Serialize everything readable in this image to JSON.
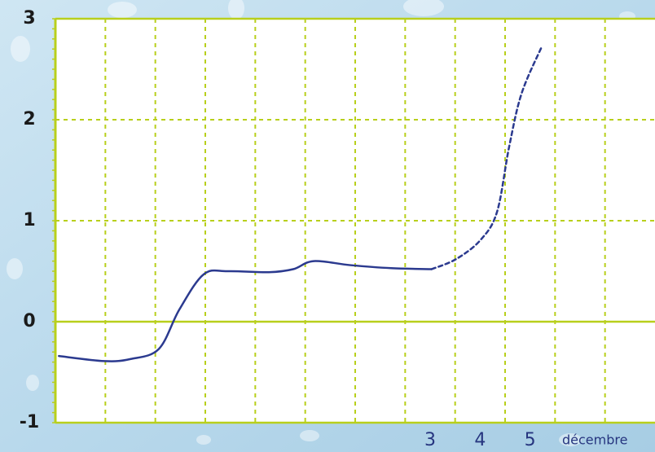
{
  "chart_data": {
    "type": "line",
    "xlabel": "décembre",
    "xlim": [
      0,
      12
    ],
    "xticks": [
      {
        "value": 7.5,
        "label": "3"
      },
      {
        "value": 8.5,
        "label": "4"
      },
      {
        "value": 9.5,
        "label": "5"
      }
    ],
    "ylim": [
      -1,
      3
    ],
    "yticks": [
      -1,
      0,
      1,
      2,
      3
    ],
    "grid": true,
    "grid_color": "#b8cf1c",
    "series": [
      {
        "color": "#2b3a8f",
        "dashed": false,
        "x": [
          0.07,
          0.98,
          1.5,
          2.07,
          2.48,
          2.97,
          3.46,
          4.27,
          4.76,
          5.17,
          5.9,
          6.72,
          7.53
        ],
        "values": [
          -0.34,
          -0.39,
          -0.37,
          -0.27,
          0.12,
          0.47,
          0.5,
          0.49,
          0.52,
          0.6,
          0.56,
          0.53,
          0.52
        ]
      },
      {
        "color": "#2b3a8f",
        "dashed": true,
        "x": [
          7.53,
          8.02,
          8.51,
          8.84,
          9.08,
          9.33,
          9.73
        ],
        "values": [
          0.52,
          0.62,
          0.81,
          1.09,
          1.73,
          2.26,
          2.72
        ]
      }
    ]
  }
}
